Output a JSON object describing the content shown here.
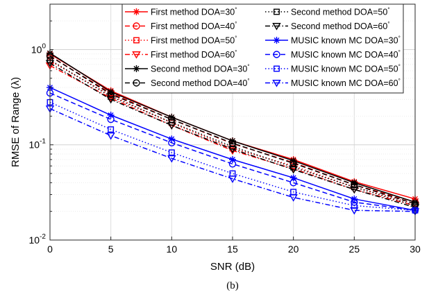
{
  "chart_data": {
    "type": "line",
    "xlabel": "SNR (dB)",
    "ylabel": "RMSE of Range (λ)",
    "caption": "(b)",
    "yscale": "log",
    "xlim": [
      0,
      30
    ],
    "ylim": [
      0.01,
      3
    ],
    "x_ticks": [
      0,
      5,
      10,
      15,
      20,
      25,
      30
    ],
    "y_ticks": [
      {
        "value": 1,
        "base": "10",
        "exp": "0"
      },
      {
        "value": 0.1,
        "base": "10",
        "exp": "-1"
      },
      {
        "value": 0.01,
        "base": "10",
        "exp": "-2"
      }
    ],
    "grid": true,
    "legend_position": "top-right",
    "x": [
      0,
      5,
      10,
      15,
      20,
      25,
      30
    ],
    "series": [
      {
        "name": "First method DOA=30",
        "color": "#ff0000",
        "dash": "solid",
        "marker": "asterisk",
        "values": [
          0.9,
          0.37,
          0.195,
          0.11,
          0.07,
          0.041,
          0.027
        ]
      },
      {
        "name": "First method DOA=40",
        "color": "#ff0000",
        "dash": "dashed",
        "marker": "circle",
        "values": [
          0.85,
          0.35,
          0.185,
          0.103,
          0.065,
          0.038,
          0.025
        ]
      },
      {
        "name": "First method DOA=50",
        "color": "#ff0000",
        "dash": "dotted",
        "marker": "square",
        "values": [
          0.76,
          0.33,
          0.17,
          0.092,
          0.06,
          0.036,
          0.024
        ]
      },
      {
        "name": "First method DOA=60",
        "color": "#ff0000",
        "dash": "dashdot",
        "marker": "triangle-down",
        "values": [
          0.68,
          0.31,
          0.16,
          0.087,
          0.056,
          0.034,
          0.023
        ]
      },
      {
        "name": "Second method DOA=30",
        "color": "#000000",
        "dash": "solid",
        "marker": "asterisk",
        "values": [
          0.92,
          0.36,
          0.195,
          0.11,
          0.068,
          0.04,
          0.025
        ]
      },
      {
        "name": "Second method DOA=40",
        "color": "#000000",
        "dash": "dashed",
        "marker": "circle",
        "values": [
          0.86,
          0.34,
          0.185,
          0.104,
          0.064,
          0.038,
          0.024
        ]
      },
      {
        "name": "Second method DOA=50",
        "color": "#000000",
        "dash": "dotted",
        "marker": "square",
        "values": [
          0.78,
          0.32,
          0.172,
          0.096,
          0.058,
          0.036,
          0.023
        ]
      },
      {
        "name": "Second method DOA=60",
        "color": "#000000",
        "dash": "dashdot",
        "marker": "triangle-down",
        "values": [
          0.72,
          0.3,
          0.16,
          0.09,
          0.055,
          0.034,
          0.022
        ]
      },
      {
        "name": "MUSIC known MC DOA=30",
        "color": "#0000ff",
        "dash": "solid",
        "marker": "asterisk",
        "values": [
          0.4,
          0.205,
          0.115,
          0.07,
          0.045,
          0.027,
          0.0205
        ]
      },
      {
        "name": "MUSIC known MC DOA=40",
        "color": "#0000ff",
        "dash": "dashed",
        "marker": "circle",
        "values": [
          0.35,
          0.185,
          0.105,
          0.063,
          0.04,
          0.025,
          0.0205
        ]
      },
      {
        "name": "MUSIC known MC DOA=50",
        "color": "#0000ff",
        "dash": "dotted",
        "marker": "square",
        "values": [
          0.28,
          0.145,
          0.083,
          0.05,
          0.032,
          0.023,
          0.0205
        ]
      },
      {
        "name": "MUSIC known MC DOA=60",
        "color": "#0000ff",
        "dash": "dashdot",
        "marker": "triangle-down",
        "values": [
          0.24,
          0.125,
          0.072,
          0.044,
          0.028,
          0.0205,
          0.02
        ]
      }
    ]
  }
}
